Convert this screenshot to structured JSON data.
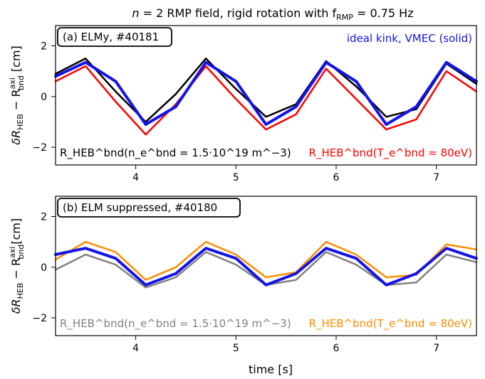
{
  "title": "n = 2 RMP field, rigid rotation with f_RMP = 0.75 Hz",
  "xlabel": "time [s]",
  "ylabel": "δR_HEB − R_bnd^axi [cm]",
  "colors": {
    "black_trace": "#000000",
    "red_trace": "#ff0000",
    "gray_trace": "#808080",
    "orange_trace": "#ff8c00",
    "blue_model": "#1414e6"
  },
  "chart_data": [
    {
      "type": "line",
      "panel_label": "(a) ELMy,  #40181",
      "xlim": [
        3.2,
        7.4
      ],
      "ylim": [
        -2.7,
        2.8
      ],
      "xticks": [
        "4",
        "5",
        "6",
        "7"
      ],
      "yticks": [
        "2",
        "0",
        "−2"
      ],
      "grid": false,
      "annotations": {
        "top_right": "ideal kink,  VMEC (solid)",
        "bottom_left": "R_HEB^bnd(n_e^bnd = 1.5·10^19 m^−3)",
        "bottom_right": "R_HEB^bnd(T_e^bnd = 80eV)"
      },
      "series": [
        {
          "name": "ideal kink,  VMEC (solid)",
          "color": "#1414e6",
          "x": [
            3.2,
            3.5,
            3.8,
            4.1,
            4.4,
            4.7,
            5.0,
            5.3,
            5.6,
            5.9,
            6.2,
            6.5,
            6.8,
            7.1,
            7.4
          ],
          "y": [
            0.8,
            1.35,
            0.6,
            -1.1,
            -0.4,
            1.35,
            0.6,
            -1.1,
            -0.4,
            1.35,
            0.6,
            -1.1,
            -0.4,
            1.35,
            0.6
          ]
        },
        {
          "name": "R_HEB^bnd(n_e^bnd = 1.5·10^19 m^−3)",
          "color": "#000000",
          "x": [
            3.2,
            3.5,
            3.8,
            4.1,
            4.4,
            4.7,
            5.0,
            5.3,
            5.6,
            5.9,
            6.2,
            6.5,
            6.8,
            7.1,
            7.4
          ],
          "y": [
            0.9,
            1.5,
            0.2,
            -1.0,
            0.1,
            1.5,
            0.3,
            -0.8,
            -0.3,
            1.4,
            0.4,
            -0.8,
            -0.5,
            1.3,
            0.5
          ]
        },
        {
          "name": "R_HEB^bnd(T_e^bnd = 80eV)",
          "color": "#ff0000",
          "x": [
            3.2,
            3.5,
            3.8,
            4.1,
            4.4,
            4.7,
            5.0,
            5.3,
            5.6,
            5.9,
            6.2,
            6.5,
            6.8,
            7.1,
            7.4
          ],
          "y": [
            0.6,
            1.2,
            -0.2,
            -1.5,
            -0.3,
            1.2,
            -0.1,
            -1.3,
            -0.7,
            1.1,
            -0.1,
            -1.3,
            -0.9,
            1.0,
            0.2
          ]
        }
      ]
    },
    {
      "type": "line",
      "panel_label": "(b) ELM suppressed,  #40180",
      "xlim": [
        3.2,
        7.4
      ],
      "ylim": [
        -2.7,
        2.8
      ],
      "xticks": [
        "4",
        "5",
        "6",
        "7"
      ],
      "yticks": [
        "2",
        "0",
        "−2"
      ],
      "grid": false,
      "annotations": {
        "bottom_left": "R_HEB^bnd(n_e^bnd = 1.5·10^19 m^−3)",
        "bottom_right": "R_HEB^bnd(T_e^bnd = 80eV)"
      },
      "series": [
        {
          "name": "ideal kink,  VMEC (solid)",
          "color": "#1414e6",
          "x": [
            3.2,
            3.5,
            3.8,
            4.1,
            4.4,
            4.7,
            5.0,
            5.3,
            5.6,
            5.9,
            6.2,
            6.5,
            6.8,
            7.1,
            7.4
          ],
          "y": [
            0.5,
            0.75,
            0.35,
            -0.7,
            -0.25,
            0.75,
            0.35,
            -0.7,
            -0.25,
            0.75,
            0.35,
            -0.7,
            -0.25,
            0.75,
            0.35
          ]
        },
        {
          "name": "R_HEB^bnd(n_e^bnd = 1.5·10^19 m^−3)",
          "color": "#808080",
          "x": [
            3.2,
            3.5,
            3.8,
            4.1,
            4.4,
            4.7,
            5.0,
            5.3,
            5.6,
            5.9,
            6.2,
            6.5,
            6.8,
            7.1,
            7.4
          ],
          "y": [
            -0.1,
            0.5,
            0.1,
            -0.8,
            -0.4,
            0.6,
            0.1,
            -0.7,
            -0.5,
            0.6,
            0.1,
            -0.7,
            -0.6,
            0.5,
            0.2
          ]
        },
        {
          "name": "R_HEB^bnd(T_e^bnd = 80eV)",
          "color": "#ff8c00",
          "x": [
            3.2,
            3.5,
            3.8,
            4.1,
            4.4,
            4.7,
            5.0,
            5.3,
            5.6,
            5.9,
            6.2,
            6.5,
            6.8,
            7.1,
            7.4
          ],
          "y": [
            0.3,
            1.0,
            0.6,
            -0.5,
            0.0,
            1.0,
            0.5,
            -0.4,
            -0.2,
            1.0,
            0.5,
            -0.4,
            -0.3,
            0.9,
            0.7
          ]
        }
      ]
    }
  ]
}
